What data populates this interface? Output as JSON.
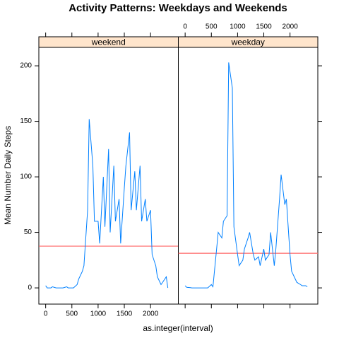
{
  "chart_data": {
    "type": "line",
    "title": "Activity Patterns: Weekdays and Weekends",
    "xlabel": "as.integer(interval)",
    "ylabel": "Mean Number Daily Steps",
    "xlim": [
      -130,
      2530
    ],
    "ylim": [
      -14.6,
      216.6
    ],
    "xticks": [
      0,
      500,
      1000,
      1500,
      2000
    ],
    "yticks": [
      0,
      50,
      100,
      150,
      200
    ],
    "x": [
      0,
      30,
      100,
      130,
      200,
      230,
      300,
      330,
      400,
      430,
      500,
      530,
      600,
      630,
      700,
      730,
      800,
      830,
      900,
      930,
      1000,
      1030,
      1100,
      1130,
      1200,
      1230,
      1300,
      1330,
      1400,
      1430,
      1500,
      1530,
      1600,
      1630,
      1700,
      1730,
      1800,
      1830,
      1900,
      1930,
      2000,
      2030,
      2100,
      2130,
      2200,
      2230,
      2300,
      2330
    ],
    "series": [
      {
        "name": "weekend",
        "color": "#0080ff",
        "hline": 37.6,
        "hline_color": "#ff6666",
        "values": [
          2,
          0,
          0,
          1,
          0,
          0,
          0,
          0,
          1,
          0,
          0,
          0,
          3,
          8,
          15,
          20,
          70,
          152,
          110,
          60,
          60,
          40,
          100,
          55,
          125,
          50,
          110,
          60,
          80,
          40,
          90,
          110,
          140,
          70,
          105,
          70,
          110,
          60,
          80,
          60,
          70,
          30,
          20,
          10,
          3,
          5,
          10,
          0
        ]
      },
      {
        "name": "weekday",
        "color": "#0080ff",
        "hline": 31.2,
        "hline_color": "#ff6666",
        "values": [
          2,
          0.5,
          0.2,
          0,
          0,
          0,
          0,
          0,
          0,
          0,
          3,
          1,
          35,
          50,
          45,
          60,
          65,
          203,
          180,
          55,
          30,
          20,
          25,
          35,
          45,
          50,
          30,
          25,
          28,
          20,
          35,
          25,
          30,
          50,
          20,
          35,
          80,
          102,
          75,
          80,
          30,
          15,
          8,
          5,
          3,
          2,
          2,
          1
        ]
      }
    ]
  }
}
